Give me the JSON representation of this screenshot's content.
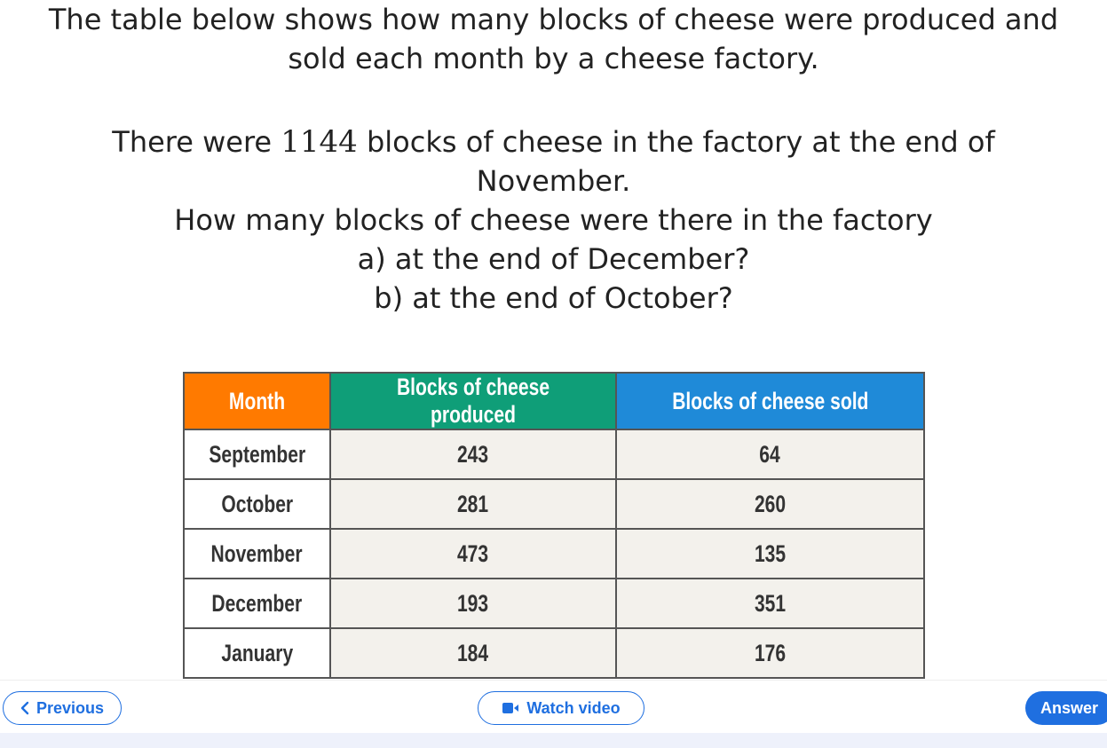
{
  "question": {
    "intro_line1": "The table below shows how many blocks of cheese were produced and",
    "intro_line2": "sold each month by a cheese factory.",
    "stock_prefix": "There were ",
    "stock_number": "1144",
    "stock_suffix": " blocks of cheese in the factory at the end of",
    "stock_line2": "November.",
    "ask_line": "How many blocks of cheese were there in the factory",
    "part_a": "a) at the end of December?",
    "part_b": "b) at the end of October?"
  },
  "table": {
    "headers": [
      "Month",
      "Blocks of cheese produced",
      "Blocks of cheese sold"
    ],
    "header_colors": [
      "#ff7a00",
      "#0f9e78",
      "#1f8ad8"
    ],
    "rows": [
      [
        "September",
        "243",
        "64"
      ],
      [
        "October",
        "281",
        "260"
      ],
      [
        "November",
        "473",
        "135"
      ],
      [
        "December",
        "193",
        "351"
      ],
      [
        "January",
        "184",
        "176"
      ]
    ]
  },
  "footer": {
    "previous_label": "Previous",
    "previous_icon": "chevron-left-icon",
    "video_label": "Watch video",
    "video_icon": "video-camera-icon",
    "answer_label": "Answer",
    "accent_color": "#1f6fe0"
  }
}
